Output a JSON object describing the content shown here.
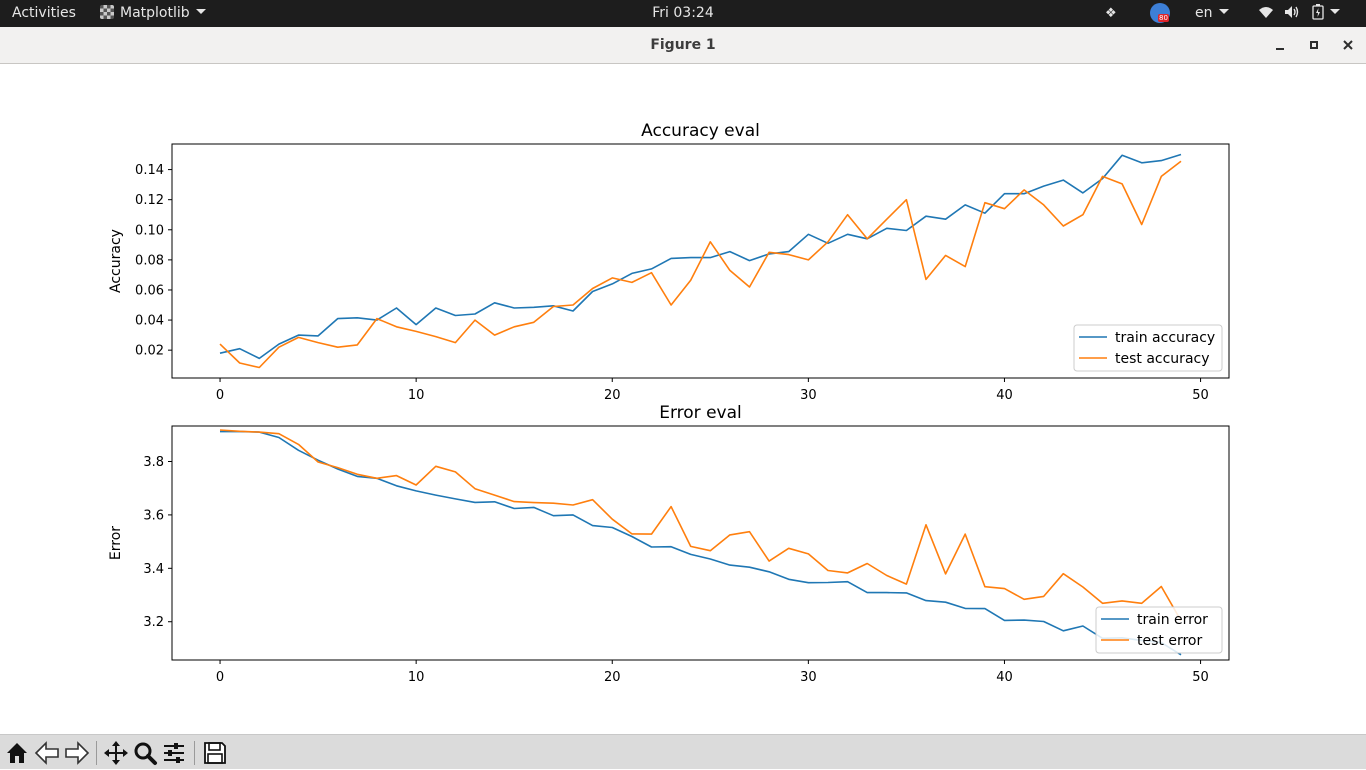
{
  "topbar": {
    "activities": "Activities",
    "app_name": "Matplotlib",
    "clock": "Fri 03:24",
    "notification_badge": "80",
    "language": "en"
  },
  "window": {
    "title": "Figure 1",
    "minimize_icon": "minimize-icon",
    "maximize_icon": "maximize-icon",
    "close_icon": "close-icon"
  },
  "toolbar": {
    "buttons": [
      "home-icon",
      "back-icon",
      "forward-icon",
      "pan-icon",
      "zoom-icon",
      "configure-subplots-icon",
      "save-icon"
    ]
  },
  "colors": {
    "train": "#1f77b4",
    "test": "#ff7f0e"
  },
  "chart_data": [
    {
      "type": "line",
      "title": "Accuracy eval",
      "xlabel": "",
      "ylabel": "Accuracy",
      "xlim": [
        -2.45,
        51.45
      ],
      "ylim": [
        0.0015,
        0.157
      ],
      "xticks": [
        0,
        10,
        20,
        30,
        40,
        50
      ],
      "yticks": [
        0.02,
        0.04,
        0.06,
        0.08,
        0.1,
        0.12,
        0.14
      ],
      "ytick_labels": [
        "0.02",
        "0.04",
        "0.06",
        "0.08",
        "0.10",
        "0.12",
        "0.14"
      ],
      "legend_loc": "lower right",
      "x": [
        0,
        1,
        2,
        3,
        4,
        5,
        6,
        7,
        8,
        9,
        10,
        11,
        12,
        13,
        14,
        15,
        16,
        17,
        18,
        19,
        20,
        21,
        22,
        23,
        24,
        25,
        26,
        27,
        28,
        29,
        30,
        31,
        32,
        33,
        34,
        35,
        36,
        37,
        38,
        39,
        40,
        41,
        42,
        43,
        44,
        45,
        46,
        47,
        48,
        49
      ],
      "series": [
        {
          "name": "train accuracy",
          "color": "#1f77b4",
          "values": [
            0.018,
            0.021,
            0.0145,
            0.024,
            0.03,
            0.0295,
            0.041,
            0.0415,
            0.04,
            0.048,
            0.037,
            0.048,
            0.043,
            0.044,
            0.0515,
            0.048,
            0.0485,
            0.0495,
            0.046,
            0.059,
            0.064,
            0.071,
            0.074,
            0.081,
            0.0815,
            0.0815,
            0.0855,
            0.0795,
            0.084,
            0.0855,
            0.097,
            0.091,
            0.097,
            0.094,
            0.101,
            0.0995,
            0.109,
            0.107,
            0.1165,
            0.111,
            0.124,
            0.124,
            0.129,
            0.133,
            0.1245,
            0.134,
            0.1495,
            0.1445,
            0.146,
            0.15
          ]
        },
        {
          "name": "test accuracy",
          "color": "#ff7f0e",
          "values": [
            0.024,
            0.0115,
            0.0085,
            0.022,
            0.0285,
            0.025,
            0.022,
            0.0235,
            0.041,
            0.0355,
            0.0325,
            0.029,
            0.025,
            0.04,
            0.03,
            0.0355,
            0.0385,
            0.049,
            0.05,
            0.061,
            0.068,
            0.065,
            0.0715,
            0.05,
            0.0665,
            0.092,
            0.073,
            0.062,
            0.085,
            0.0835,
            0.08,
            0.092,
            0.11,
            0.094,
            0.107,
            0.12,
            0.067,
            0.083,
            0.0755,
            0.118,
            0.114,
            0.1265,
            0.1165,
            0.1025,
            0.11,
            0.1355,
            0.1305,
            0.1035,
            0.1355,
            0.1455
          ]
        }
      ]
    },
    {
      "type": "line",
      "title": "Error eval",
      "xlabel": "",
      "ylabel": "Error",
      "xlim": [
        -2.45,
        51.45
      ],
      "ylim": [
        3.0567,
        3.9329
      ],
      "xticks": [
        0,
        10,
        20,
        30,
        40,
        50
      ],
      "yticks": [
        3.2,
        3.4,
        3.6,
        3.8
      ],
      "ytick_labels": [
        "3.2",
        "3.4",
        "3.6",
        "3.8"
      ],
      "legend_loc": "lower right",
      "x": [
        0,
        1,
        2,
        3,
        4,
        5,
        6,
        7,
        8,
        9,
        10,
        11,
        12,
        13,
        14,
        15,
        16,
        17,
        18,
        19,
        20,
        21,
        22,
        23,
        24,
        25,
        26,
        27,
        28,
        29,
        30,
        31,
        32,
        33,
        34,
        35,
        36,
        37,
        38,
        39,
        40,
        41,
        42,
        43,
        44,
        45,
        46,
        47,
        48,
        49
      ],
      "series": [
        {
          "name": "train error",
          "color": "#1f77b4",
          "values": [
            3.912,
            3.912,
            3.91,
            3.89,
            3.842,
            3.805,
            3.772,
            3.744,
            3.737,
            3.709,
            3.69,
            3.674,
            3.66,
            3.647,
            3.649,
            3.624,
            3.628,
            3.597,
            3.6,
            3.56,
            3.553,
            3.519,
            3.48,
            3.481,
            3.452,
            3.435,
            3.412,
            3.404,
            3.387,
            3.359,
            3.346,
            3.347,
            3.35,
            3.309,
            3.309,
            3.308,
            3.279,
            3.273,
            3.25,
            3.249,
            3.205,
            3.206,
            3.201,
            3.166,
            3.184,
            3.138,
            3.14,
            3.13,
            3.122,
            3.076
          ]
        },
        {
          "name": "test error",
          "color": "#ff7f0e",
          "values": [
            3.918,
            3.913,
            3.91,
            3.904,
            3.864,
            3.798,
            3.777,
            3.752,
            3.737,
            3.747,
            3.712,
            3.782,
            3.761,
            3.698,
            3.674,
            3.65,
            3.646,
            3.644,
            3.637,
            3.657,
            3.584,
            3.529,
            3.528,
            3.631,
            3.482,
            3.466,
            3.525,
            3.537,
            3.427,
            3.475,
            3.454,
            3.392,
            3.383,
            3.418,
            3.373,
            3.341,
            3.563,
            3.379,
            3.528,
            3.331,
            3.324,
            3.284,
            3.295,
            3.38,
            3.33,
            3.269,
            3.278,
            3.269,
            3.332,
            3.204
          ]
        }
      ]
    }
  ]
}
